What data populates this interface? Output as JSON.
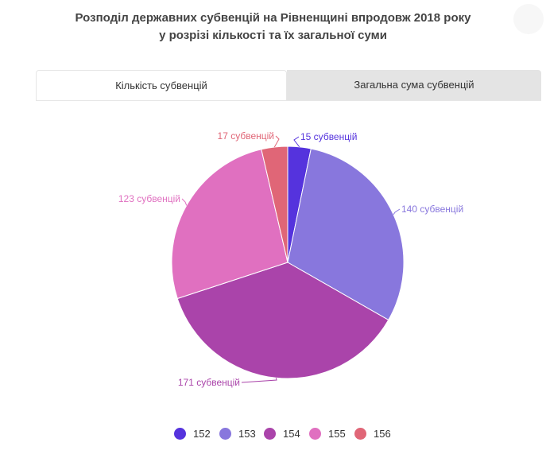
{
  "title_line1": "Розподіл державних субвенцій на Рівненщині впродовж 2018 року",
  "title_line2": "у розрізі кількості та їх загальної суми",
  "tabs": [
    {
      "label": "Кількість субвенцій",
      "active": true
    },
    {
      "label": "Загальна сума субвенцій",
      "active": false
    }
  ],
  "chart_data": {
    "type": "pie",
    "title": "Розподіл державних субвенцій на Рівненщині впродовж 2018 року у розрізі кількості та їх загальної суми",
    "legend_position": "bottom",
    "label_suffix": " субвенцій",
    "slices": [
      {
        "name": "152",
        "value": 15,
        "color": "#5533dd"
      },
      {
        "name": "153",
        "value": 140,
        "color": "#8877dd"
      },
      {
        "name": "154",
        "value": 171,
        "color": "#aa44aa"
      },
      {
        "name": "155",
        "value": 123,
        "color": "#e070c0"
      },
      {
        "name": "156",
        "value": 17,
        "color": "#e06677"
      }
    ]
  },
  "colors": {
    "tab_inactive_bg": "#e4e4e4",
    "tab_border": "#e6e6e6"
  }
}
